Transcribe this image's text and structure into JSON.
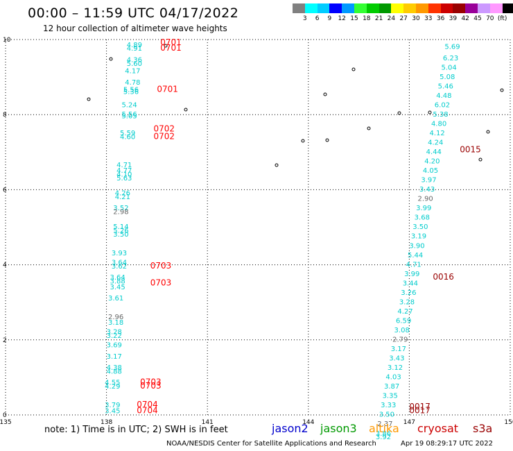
{
  "header": {
    "title": "00:00 – 11:59 UTC 04/17/2022",
    "subtitle": "12 hour collection of altimeter wave heights"
  },
  "colorbar": {
    "colors": [
      "#808080",
      "#00ffff",
      "#00ccff",
      "#0000ff",
      "#0099ff",
      "#33ff33",
      "#00cc00",
      "#009900",
      "#ffff00",
      "#ffcc00",
      "#ff9900",
      "#ff3300",
      "#cc0000",
      "#990000",
      "#990099",
      "#cc99ff",
      "#ff99ff",
      "#000000"
    ],
    "labels": [
      "3",
      "6",
      "9",
      "12",
      "15",
      "18",
      "21",
      "24",
      "27",
      "30",
      "33",
      "36",
      "39",
      "42",
      "45",
      "70",
      "(ft)"
    ]
  },
  "axes": {
    "x_ticks": [
      "135",
      "138",
      "141",
      "144",
      "147",
      "150"
    ],
    "y_ticks": [
      "0",
      "2",
      "4",
      "6",
      "8",
      "10"
    ],
    "xlim": [
      135,
      150
    ],
    "ylim": [
      0,
      10
    ]
  },
  "colors": {
    "swh_cyan": "#00cccc",
    "swh_gray": "#666666",
    "time_red": "#ff0000",
    "time_dark": "#990000"
  },
  "tracks": [
    {
      "name": "track-west",
      "points": [
        {
          "lon": 138.6,
          "lat": 9.8,
          "v": "4.89"
        },
        {
          "lon": 138.6,
          "lat": 9.7,
          "v": "4.91"
        },
        {
          "lon": 138.6,
          "lat": 9.4,
          "v": "4.36"
        },
        {
          "lon": 138.6,
          "lat": 9.3,
          "v": "5.60"
        },
        {
          "lon": 138.55,
          "lat": 9.1,
          "v": "4.17"
        },
        {
          "lon": 138.55,
          "lat": 8.8,
          "v": "4.78"
        },
        {
          "lon": 138.5,
          "lat": 8.6,
          "v": "5.56"
        },
        {
          "lon": 138.5,
          "lat": 8.55,
          "v": "5.36"
        },
        {
          "lon": 138.45,
          "lat": 8.2,
          "v": "5.24"
        },
        {
          "lon": 138.45,
          "lat": 7.95,
          "v": "5.56"
        },
        {
          "lon": 138.45,
          "lat": 7.9,
          "v": "5.05"
        },
        {
          "lon": 138.4,
          "lat": 7.45,
          "v": "5.59"
        },
        {
          "lon": 138.4,
          "lat": 7.35,
          "v": "4.60"
        },
        {
          "lon": 138.3,
          "lat": 6.6,
          "v": "4.71"
        },
        {
          "lon": 138.3,
          "lat": 6.45,
          "v": "4.77"
        },
        {
          "lon": 138.3,
          "lat": 6.35,
          "v": "4.10"
        },
        {
          "lon": 138.3,
          "lat": 6.25,
          "v": "5.63"
        },
        {
          "lon": 138.25,
          "lat": 5.85,
          "v": "4.26"
        },
        {
          "lon": 138.25,
          "lat": 5.75,
          "v": "4.21"
        },
        {
          "lon": 138.2,
          "lat": 5.45,
          "v": "3.52"
        },
        {
          "lon": 138.2,
          "lat": 5.35,
          "v": "2.98",
          "g": true
        },
        {
          "lon": 138.2,
          "lat": 4.95,
          "v": "5.14"
        },
        {
          "lon": 138.2,
          "lat": 4.85,
          "v": "5.26"
        },
        {
          "lon": 138.2,
          "lat": 4.75,
          "v": "3.50"
        },
        {
          "lon": 138.15,
          "lat": 4.25,
          "v": "3.93"
        },
        {
          "lon": 138.15,
          "lat": 4.0,
          "v": "3.64"
        },
        {
          "lon": 138.15,
          "lat": 3.9,
          "v": "3.62"
        },
        {
          "lon": 138.1,
          "lat": 3.6,
          "v": "3.64"
        },
        {
          "lon": 138.1,
          "lat": 3.5,
          "v": "3.88"
        },
        {
          "lon": 138.1,
          "lat": 3.35,
          "v": "3.45"
        },
        {
          "lon": 138.05,
          "lat": 3.05,
          "v": "3.61"
        },
        {
          "lon": 138.05,
          "lat": 2.55,
          "v": "2.96",
          "g": true
        },
        {
          "lon": 138.05,
          "lat": 2.4,
          "v": "3.18"
        },
        {
          "lon": 138.0,
          "lat": 2.15,
          "v": "3.28"
        },
        {
          "lon": 138.0,
          "lat": 2.05,
          "v": "3.22"
        },
        {
          "lon": 138.0,
          "lat": 1.8,
          "v": "3.69"
        },
        {
          "lon": 138.0,
          "lat": 1.5,
          "v": "3.17"
        },
        {
          "lon": 138.0,
          "lat": 1.2,
          "v": "4.38"
        },
        {
          "lon": 138.0,
          "lat": 1.1,
          "v": "4.88"
        },
        {
          "lon": 137.95,
          "lat": 0.8,
          "v": "4.55"
        },
        {
          "lon": 137.95,
          "lat": 0.7,
          "v": "4.29"
        },
        {
          "lon": 137.95,
          "lat": 0.2,
          "v": "3.79"
        },
        {
          "lon": 137.95,
          "lat": 0.05,
          "v": "3.45"
        }
      ],
      "times": [
        {
          "lon": 139.6,
          "lat": 9.85,
          "t": "0701"
        },
        {
          "lon": 139.6,
          "lat": 9.7,
          "t": "0701"
        },
        {
          "lon": 139.5,
          "lat": 8.6,
          "t": "0701"
        },
        {
          "lon": 139.4,
          "lat": 7.55,
          "t": "0702"
        },
        {
          "lon": 139.4,
          "lat": 7.35,
          "t": "0702"
        },
        {
          "lon": 139.3,
          "lat": 3.9,
          "t": "0703"
        },
        {
          "lon": 139.3,
          "lat": 3.45,
          "t": "0703"
        },
        {
          "lon": 139.0,
          "lat": 0.8,
          "t": "0703"
        },
        {
          "lon": 139.0,
          "lat": 0.7,
          "t": "0703"
        },
        {
          "lon": 138.9,
          "lat": 0.2,
          "t": "0704"
        },
        {
          "lon": 138.9,
          "lat": 0.05,
          "t": "0704"
        }
      ]
    },
    {
      "name": "track-east",
      "points": [
        {
          "lon": 148.05,
          "lat": 9.75,
          "v": "5.69"
        },
        {
          "lon": 148.0,
          "lat": 9.45,
          "v": "6.23"
        },
        {
          "lon": 147.95,
          "lat": 9.2,
          "v": "5.04"
        },
        {
          "lon": 147.9,
          "lat": 8.95,
          "v": "5.08"
        },
        {
          "lon": 147.85,
          "lat": 8.7,
          "v": "5.46"
        },
        {
          "lon": 147.8,
          "lat": 8.45,
          "v": "4.48"
        },
        {
          "lon": 147.75,
          "lat": 8.2,
          "v": "6.02"
        },
        {
          "lon": 147.7,
          "lat": 7.95,
          "v": "5.38"
        },
        {
          "lon": 147.65,
          "lat": 7.7,
          "v": "4.80"
        },
        {
          "lon": 147.6,
          "lat": 7.45,
          "v": "4.12"
        },
        {
          "lon": 147.55,
          "lat": 7.2,
          "v": "4.24"
        },
        {
          "lon": 147.5,
          "lat": 6.95,
          "v": "4.44"
        },
        {
          "lon": 147.45,
          "lat": 6.7,
          "v": "4.20"
        },
        {
          "lon": 147.4,
          "lat": 6.45,
          "v": "4.05"
        },
        {
          "lon": 147.35,
          "lat": 6.2,
          "v": "3.97"
        },
        {
          "lon": 147.3,
          "lat": 5.95,
          "v": "3.43"
        },
        {
          "lon": 147.25,
          "lat": 5.7,
          "v": "2.90",
          "g": true
        },
        {
          "lon": 147.2,
          "lat": 5.45,
          "v": "3.99"
        },
        {
          "lon": 147.15,
          "lat": 5.2,
          "v": "3.68"
        },
        {
          "lon": 147.1,
          "lat": 4.95,
          "v": "3.50"
        },
        {
          "lon": 147.05,
          "lat": 4.7,
          "v": "3.19"
        },
        {
          "lon": 147.0,
          "lat": 4.45,
          "v": "3.90"
        },
        {
          "lon": 146.95,
          "lat": 4.2,
          "v": "5.44"
        },
        {
          "lon": 146.9,
          "lat": 3.95,
          "v": "4.71"
        },
        {
          "lon": 146.85,
          "lat": 3.7,
          "v": "3.99"
        },
        {
          "lon": 146.8,
          "lat": 3.45,
          "v": "3.44"
        },
        {
          "lon": 146.75,
          "lat": 3.2,
          "v": "3.26"
        },
        {
          "lon": 146.7,
          "lat": 2.95,
          "v": "3.28"
        },
        {
          "lon": 146.65,
          "lat": 2.7,
          "v": "4.27"
        },
        {
          "lon": 146.6,
          "lat": 2.45,
          "v": "6.59"
        },
        {
          "lon": 146.55,
          "lat": 2.2,
          "v": "3.08"
        },
        {
          "lon": 146.5,
          "lat": 1.95,
          "v": "2.79",
          "g": true
        },
        {
          "lon": 146.45,
          "lat": 1.7,
          "v": "3.17"
        },
        {
          "lon": 146.4,
          "lat": 1.45,
          "v": "3.43"
        },
        {
          "lon": 146.35,
          "lat": 1.2,
          "v": "3.12"
        },
        {
          "lon": 146.3,
          "lat": 0.95,
          "v": "4.03"
        },
        {
          "lon": 146.25,
          "lat": 0.7,
          "v": "3.87"
        },
        {
          "lon": 146.2,
          "lat": 0.45,
          "v": "3.35"
        },
        {
          "lon": 146.15,
          "lat": 0.2,
          "v": "3.33"
        },
        {
          "lon": 146.1,
          "lat": -0.05,
          "v": "3.50"
        },
        {
          "lon": 146.05,
          "lat": -0.3,
          "v": "2.37",
          "g": true
        },
        {
          "lon": 146.0,
          "lat": -0.55,
          "v": "3.86"
        },
        {
          "lon": 146.0,
          "lat": -0.65,
          "v": "3.92"
        }
      ],
      "times": [
        {
          "lon": 148.5,
          "lat": 7.0,
          "t": "0015"
        },
        {
          "lon": 147.7,
          "lat": 3.6,
          "t": "0016"
        },
        {
          "lon": 147.0,
          "lat": 0.15,
          "t": "0017"
        },
        {
          "lon": 147.0,
          "lat": 0.05,
          "t": "0017"
        }
      ]
    }
  ],
  "footer": {
    "note": "note:  1) Time is in UTC;  2) SWH is in feet",
    "legend": [
      {
        "label": "jason2",
        "color": "#0000cc"
      },
      {
        "label": "jason3",
        "color": "#009900"
      },
      {
        "label": "altika",
        "color": "#ff9900"
      },
      {
        "label": "cryosat",
        "color": "#cc0000"
      },
      {
        "label": "s3a",
        "color": "#990000"
      }
    ],
    "credit": "NOAA/NESDIS Center for Satellite Applications and Research",
    "timestamp": "Apr 19 08:29:17 UTC 2022"
  }
}
